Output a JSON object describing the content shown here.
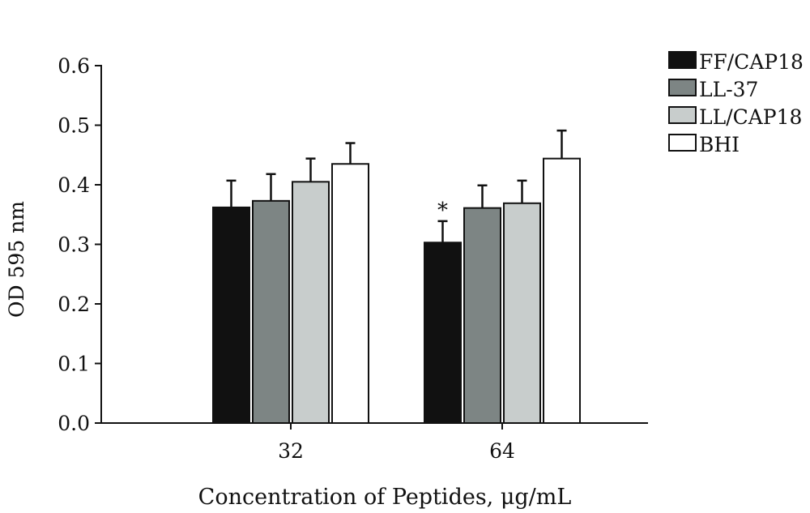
{
  "chart_data": {
    "type": "bar",
    "categories": [
      "32",
      "64"
    ],
    "series": [
      {
        "name": "FF/CAP18",
        "color": "#111111",
        "values": [
          0.362,
          0.303
        ],
        "errors": [
          0.045,
          0.036
        ]
      },
      {
        "name": "LL-37",
        "color": "#7d8584",
        "values": [
          0.373,
          0.361
        ],
        "errors": [
          0.045,
          0.038
        ]
      },
      {
        "name": "LL/CAP18",
        "color": "#c8cdcc",
        "values": [
          0.405,
          0.369
        ],
        "errors": [
          0.039,
          0.038
        ]
      },
      {
        "name": "BHI",
        "color": "#ffffff",
        "values": [
          0.435,
          0.444
        ],
        "errors": [
          0.035,
          0.047
        ]
      }
    ],
    "ylim": [
      0.0,
      0.6
    ],
    "yticks": [
      "0.0",
      "0.1",
      "0.2",
      "0.3",
      "0.4",
      "0.5",
      "0.6"
    ],
    "ylabel": "OD 595 nm",
    "xlabel": "Concentration of Peptides, μg/mL",
    "grid": false,
    "legend_position": "top-right",
    "annotations": [
      {
        "text": "*",
        "category": "64",
        "series": "FF/CAP18"
      }
    ]
  }
}
